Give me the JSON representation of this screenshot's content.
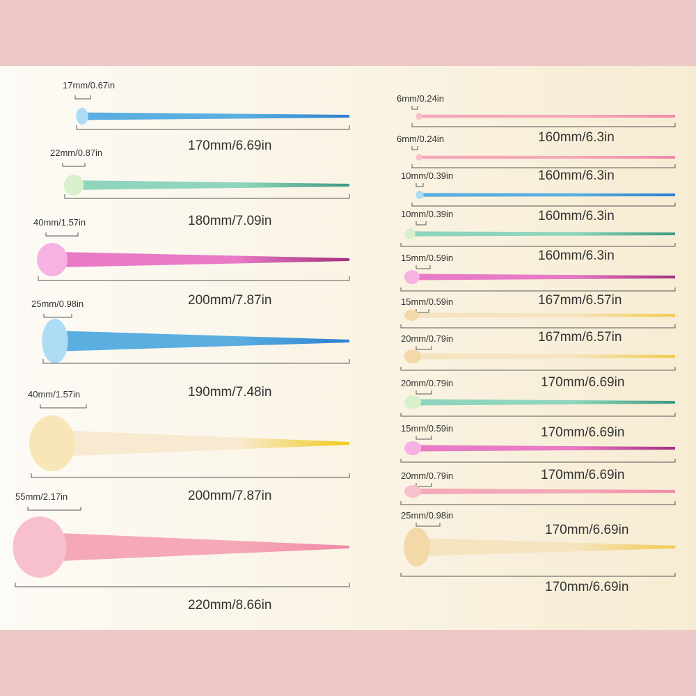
{
  "left_brushes": [
    {
      "head": "17mm/0.67in",
      "length": "170mm/6.69in"
    },
    {
      "head": "22mm/0.87in",
      "length": "180mm/7.09in"
    },
    {
      "head": "40mm/1.57in",
      "length": "200mm/7.87in"
    },
    {
      "head": "25mm/0.98in",
      "length": "190mm/7.48in"
    },
    {
      "head": "40mm/1.57in",
      "length": "200mm/7.87in"
    },
    {
      "head": "55mm/2.17in",
      "length": "220mm/8.66in"
    }
  ],
  "right_brushes": [
    {
      "head": "6mm/0.24in",
      "length": "160mm/6.3in"
    },
    {
      "head": "6mm/0.24in",
      "length": "160mm/6.3in"
    },
    {
      "head": "10mm/0.39in",
      "length": "160mm/6.3in"
    },
    {
      "head": "10mm/0.39in",
      "length": "160mm/6.3in"
    },
    {
      "head": "15mm/0.59in",
      "length": "167mm/6.57in"
    },
    {
      "head": "15mm/0.59in",
      "length": "167mm/6.57in"
    },
    {
      "head": "20mm/0.79in",
      "length": "170mm/6.69in"
    },
    {
      "head": "20mm/0.79in",
      "length": "170mm/6.69in"
    },
    {
      "head": "15mm/0.59in",
      "length": "170mm/6.69in"
    },
    {
      "head": "20mm/0.79in",
      "length": "170mm/6.69in"
    },
    {
      "head": "25mm/0.98in",
      "length": "170mm/6.69in"
    }
  ]
}
